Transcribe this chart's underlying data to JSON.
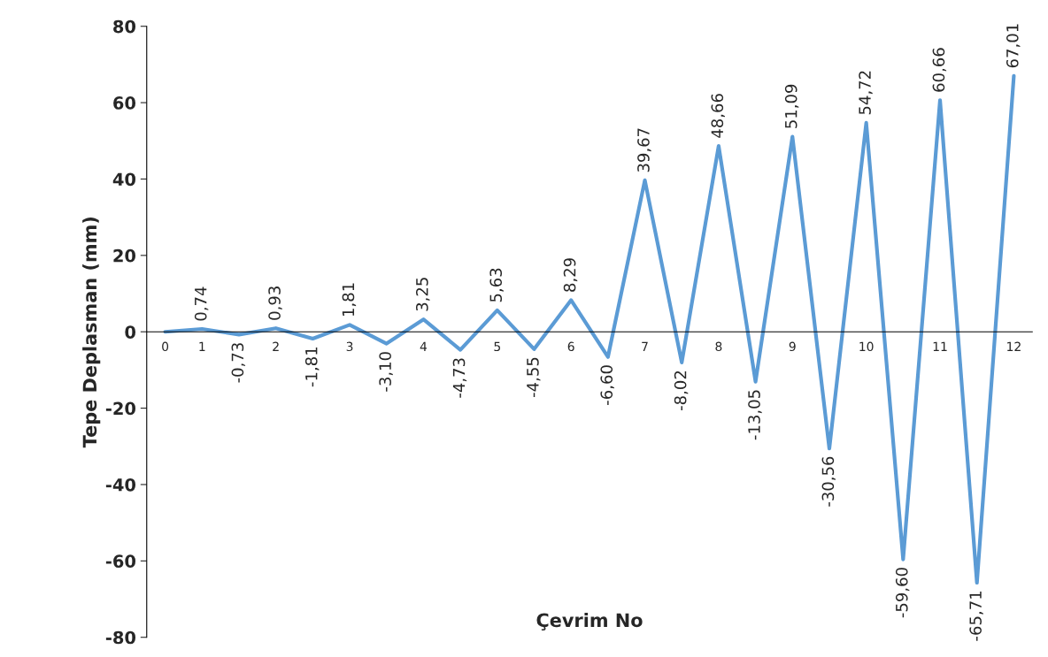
{
  "chart_data": {
    "type": "line",
    "xlabel": "Çevrim No",
    "ylabel": "Tepe Deplasman (mm)",
    "categories": [
      "0",
      "1",
      null,
      "2",
      null,
      "3",
      null,
      "4",
      null,
      "5",
      null,
      "6",
      null,
      "7",
      null,
      "8",
      null,
      "9",
      null,
      "10",
      null,
      "11",
      null,
      "12"
    ],
    "series": [
      {
        "color": "#5b9bd5",
        "values": [
          0,
          0.74,
          -0.73,
          0.93,
          -1.81,
          1.81,
          -3.1,
          3.25,
          -4.73,
          5.63,
          -4.55,
          8.29,
          -6.6,
          39.67,
          -8.02,
          48.66,
          -13.05,
          51.09,
          -30.56,
          54.72,
          -59.6,
          60.66,
          -65.71,
          67.01
        ],
        "value_labels": [
          null,
          "0,74",
          "-0,73",
          "0,93",
          "-1,81",
          "1,81",
          "-3,10",
          "3,25",
          "-4,73",
          "5,63",
          "-4,55",
          "8,29",
          "-6,60",
          "39,67",
          "-8,02",
          "48,66",
          "-13,05",
          "51,09",
          "-30,56",
          "54,72",
          "-59,60",
          "60,66",
          "-65,71",
          "67,01"
        ]
      }
    ],
    "ylim": [
      -80,
      80
    ],
    "yticks": [
      -80,
      -60,
      -40,
      -20,
      0,
      20,
      40,
      60,
      80
    ],
    "grid": false,
    "legend": false,
    "marker": "none",
    "line_style": "solid"
  }
}
